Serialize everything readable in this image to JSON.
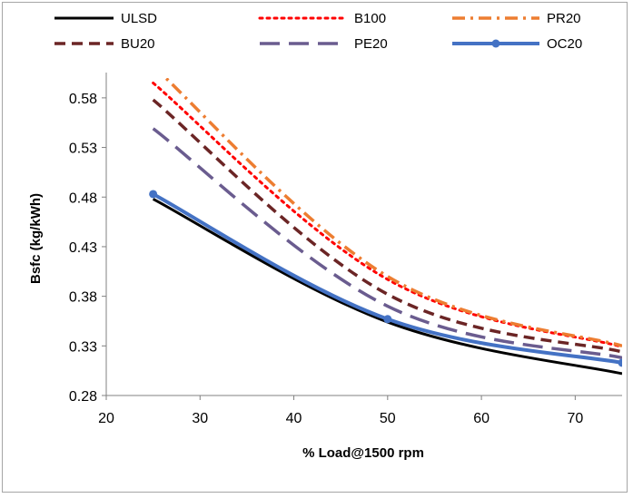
{
  "chart_data": {
    "type": "line",
    "title": "",
    "xlabel": "% Load@1500 rpm",
    "ylabel": "Bsfc (kg/kWh)",
    "xlim": [
      20,
      75
    ],
    "ylim": [
      0.28,
      0.6
    ],
    "xticks": [
      "20",
      "30",
      "40",
      "50",
      "60",
      "70"
    ],
    "yticks": [
      "0.28",
      "0.33",
      "0.38",
      "0.43",
      "0.48",
      "0.53",
      "0.58"
    ],
    "legend_position": "top",
    "x": [
      25,
      50,
      75
    ],
    "series": [
      {
        "name": "ULSD",
        "color": "#000000",
        "style": "solid",
        "marker": "none",
        "values": [
          0.478,
          0.354,
          0.302
        ]
      },
      {
        "name": "B100",
        "color": "#ff0000",
        "style": "dotted",
        "marker": "none",
        "values": [
          0.595,
          0.397,
          0.329
        ]
      },
      {
        "name": "PR20",
        "color": "#ed7d31",
        "style": "dash-dot",
        "marker": "none",
        "values": [
          0.612,
          0.4,
          0.33
        ]
      },
      {
        "name": "BU20",
        "color": "#6b2525",
        "style": "dashed",
        "marker": "none",
        "values": [
          0.578,
          0.382,
          0.324
        ]
      },
      {
        "name": "PE20",
        "color": "#6a5c8f",
        "style": "long-dash",
        "marker": "none",
        "values": [
          0.549,
          0.37,
          0.318
        ]
      },
      {
        "name": "OC20",
        "color": "#4472c4",
        "style": "solid-thick",
        "marker": "circle",
        "values": [
          0.483,
          0.357,
          0.313
        ]
      }
    ]
  }
}
